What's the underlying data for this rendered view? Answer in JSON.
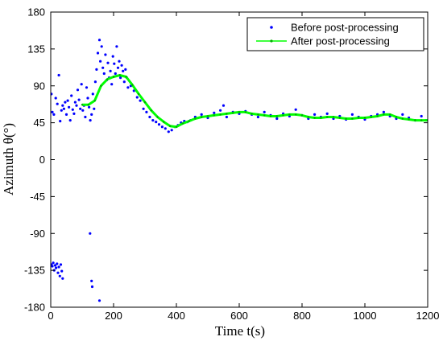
{
  "chart_data": {
    "type": "scatter",
    "xlabel": "Time t(s)",
    "ylabel": "Azimuth θ(°)",
    "xlim": [
      0,
      1200
    ],
    "ylim": [
      -180,
      180
    ],
    "xticks": [
      0,
      200,
      400,
      600,
      800,
      1000,
      1200
    ],
    "yticks": [
      -180,
      -135,
      -90,
      -45,
      0,
      45,
      90,
      135,
      180
    ],
    "grid": false,
    "legend_position": "top-right",
    "series": [
      {
        "name": "Before post-processing",
        "kind": "scatter",
        "color": "#0000ff",
        "points": [
          [
            2,
            -128
          ],
          [
            5,
            -130
          ],
          [
            8,
            -126
          ],
          [
            11,
            -135
          ],
          [
            14,
            -129
          ],
          [
            17,
            -132
          ],
          [
            20,
            -127
          ],
          [
            23,
            -138
          ],
          [
            26,
            -131
          ],
          [
            29,
            -142
          ],
          [
            32,
            -128
          ],
          [
            35,
            -136
          ],
          [
            38,
            -145
          ],
          [
            2,
            80
          ],
          [
            5,
            58
          ],
          [
            10,
            55
          ],
          [
            16,
            75
          ],
          [
            21,
            68
          ],
          [
            26,
            103
          ],
          [
            30,
            47
          ],
          [
            34,
            60
          ],
          [
            38,
            66
          ],
          [
            42,
            62
          ],
          [
            46,
            70
          ],
          [
            50,
            55
          ],
          [
            54,
            72
          ],
          [
            58,
            64
          ],
          [
            62,
            48
          ],
          [
            66,
            78
          ],
          [
            70,
            61
          ],
          [
            74,
            56
          ],
          [
            78,
            70
          ],
          [
            82,
            66
          ],
          [
            86,
            85
          ],
          [
            90,
            73
          ],
          [
            94,
            62
          ],
          [
            98,
            92
          ],
          [
            102,
            60
          ],
          [
            106,
            66
          ],
          [
            110,
            52
          ],
          [
            114,
            88
          ],
          [
            118,
            75
          ],
          [
            122,
            64
          ],
          [
            126,
            48
          ],
          [
            130,
            55
          ],
          [
            134,
            80
          ],
          [
            138,
            62
          ],
          [
            142,
            95
          ],
          [
            146,
            110
          ],
          [
            125,
            -90
          ],
          [
            130,
            -148
          ],
          [
            132,
            -155
          ],
          [
            155,
            -172
          ],
          [
            150,
            130
          ],
          [
            155,
            146
          ],
          [
            158,
            120
          ],
          [
            162,
            138
          ],
          [
            166,
            112
          ],
          [
            170,
            105
          ],
          [
            174,
            128
          ],
          [
            178,
            97
          ],
          [
            182,
            118
          ],
          [
            186,
            100
          ],
          [
            190,
            108
          ],
          [
            194,
            92
          ],
          [
            198,
            126
          ],
          [
            202,
            117
          ],
          [
            206,
            105
          ],
          [
            210,
            138
          ],
          [
            214,
            112
          ],
          [
            218,
            120
          ],
          [
            222,
            100
          ],
          [
            226,
            115
          ],
          [
            230,
            108
          ],
          [
            234,
            95
          ],
          [
            238,
            110
          ],
          [
            242,
            100
          ],
          [
            246,
            88
          ],
          [
            255,
            90
          ],
          [
            265,
            84
          ],
          [
            275,
            76
          ],
          [
            285,
            72
          ],
          [
            295,
            62
          ],
          [
            305,
            58
          ],
          [
            315,
            52
          ],
          [
            325,
            48
          ],
          [
            335,
            46
          ],
          [
            345,
            43
          ],
          [
            355,
            40
          ],
          [
            365,
            38
          ],
          [
            375,
            34
          ],
          [
            385,
            36
          ],
          [
            395,
            40
          ],
          [
            405,
            42
          ],
          [
            415,
            45
          ],
          [
            425,
            47
          ],
          [
            435,
            46
          ],
          [
            445,
            48
          ],
          [
            460,
            52
          ],
          [
            480,
            55
          ],
          [
            500,
            51
          ],
          [
            520,
            57
          ],
          [
            540,
            60
          ],
          [
            550,
            66
          ],
          [
            560,
            52
          ],
          [
            580,
            58
          ],
          [
            600,
            56
          ],
          [
            620,
            59
          ],
          [
            640,
            55
          ],
          [
            660,
            52
          ],
          [
            680,
            58
          ],
          [
            700,
            54
          ],
          [
            720,
            50
          ],
          [
            740,
            56
          ],
          [
            760,
            53
          ],
          [
            780,
            61
          ],
          [
            800,
            54
          ],
          [
            820,
            50
          ],
          [
            840,
            55
          ],
          [
            860,
            52
          ],
          [
            880,
            56
          ],
          [
            900,
            50
          ],
          [
            920,
            53
          ],
          [
            940,
            49
          ],
          [
            960,
            55
          ],
          [
            980,
            52
          ],
          [
            1000,
            49
          ],
          [
            1020,
            53
          ],
          [
            1040,
            55
          ],
          [
            1060,
            58
          ],
          [
            1080,
            53
          ],
          [
            1100,
            50
          ],
          [
            1120,
            55
          ],
          [
            1140,
            51
          ],
          [
            1160,
            48
          ],
          [
            1180,
            53
          ],
          [
            1195,
            48
          ]
        ]
      },
      {
        "name": "After post-processing",
        "kind": "line",
        "color": "#00ff00",
        "x": [
          100,
          120,
          140,
          160,
          180,
          200,
          220,
          240,
          260,
          280,
          300,
          320,
          340,
          360,
          380,
          400,
          420,
          440,
          460,
          480,
          500,
          520,
          540,
          560,
          580,
          600,
          620,
          640,
          660,
          680,
          700,
          720,
          740,
          760,
          780,
          800,
          820,
          840,
          860,
          880,
          900,
          920,
          940,
          960,
          980,
          1000,
          1020,
          1040,
          1060,
          1080,
          1100,
          1120,
          1140,
          1160,
          1180,
          1200
        ],
        "y": [
          67,
          67,
          72,
          90,
          98,
          101,
          103,
          101,
          91,
          80,
          70,
          60,
          52,
          46,
          41,
          40,
          44,
          47,
          50,
          52,
          53,
          54,
          55,
          56,
          57,
          58,
          58,
          56,
          55,
          54,
          53,
          53,
          54,
          55,
          55,
          54,
          52,
          51,
          51,
          52,
          52,
          51,
          50,
          50,
          51,
          51,
          52,
          53,
          55,
          55,
          52,
          50,
          49,
          48,
          48,
          48
        ]
      }
    ]
  }
}
